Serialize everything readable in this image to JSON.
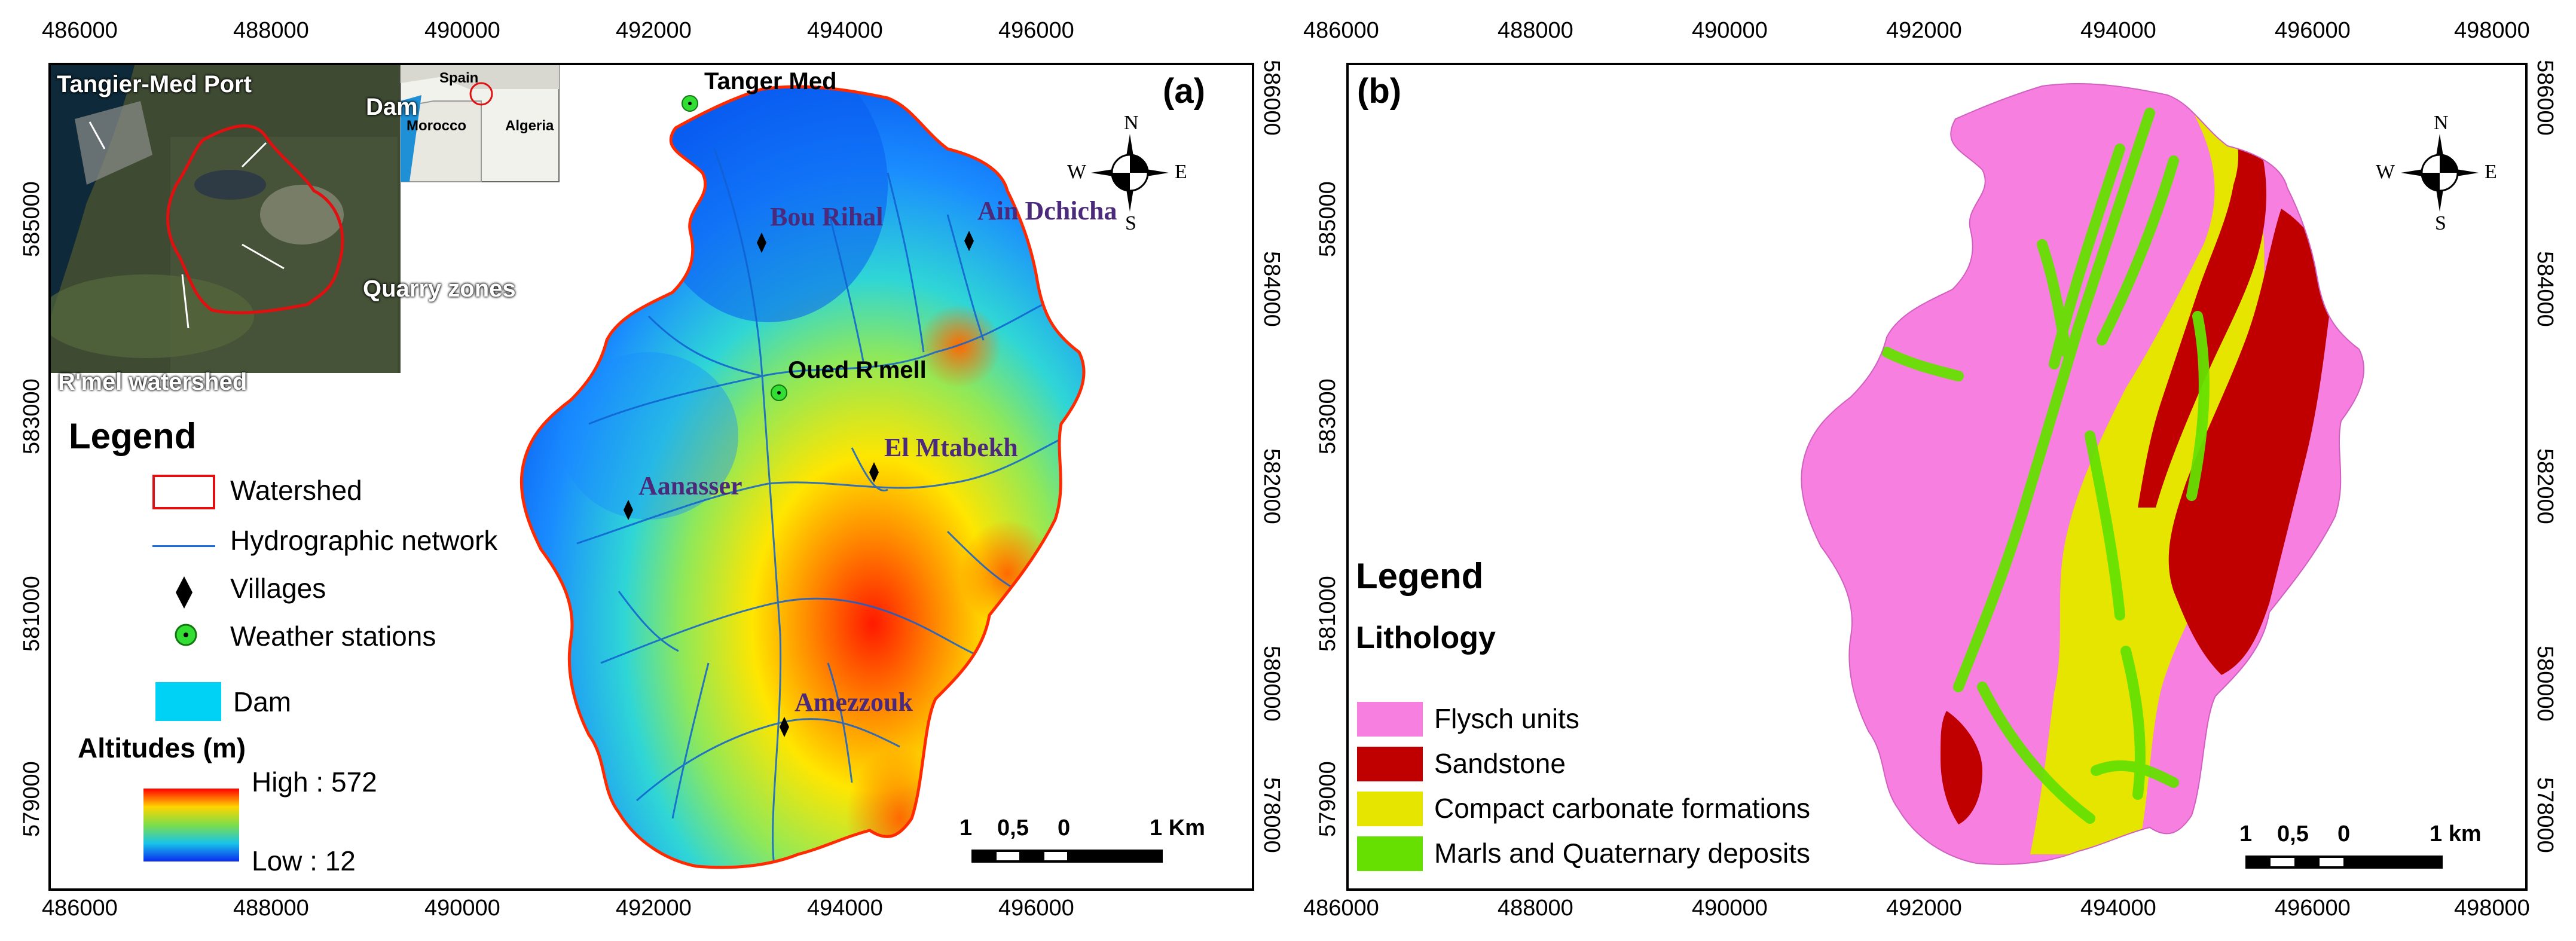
{
  "panel_a": {
    "label": "(a)",
    "top_ticks": [
      "486000",
      "488000",
      "490000",
      "492000",
      "494000",
      "496000"
    ],
    "bottom_ticks": [
      "486000",
      "488000",
      "490000",
      "492000",
      "494000",
      "496000"
    ],
    "left_ticks": [
      "585000",
      "583000",
      "581000",
      "579000"
    ],
    "right_ticks": [
      "586000",
      "584000",
      "582000",
      "580000",
      "578000"
    ],
    "villages": [
      "Bou Rihal",
      "Ain Dchicha",
      "El Mtabekh",
      "Aanasser",
      "Amezzouk"
    ],
    "stations": [
      "Tanger Med",
      "Oued R'mell"
    ],
    "inset": {
      "labels": [
        "Tangier-Med Port",
        "Dam",
        "Quarry zones",
        "R'mel watershed"
      ],
      "country_labels": [
        "Spain",
        "Morocco",
        "Algeria"
      ]
    },
    "legend": {
      "title": "Legend",
      "items": [
        "Watershed",
        "Hydrographic network",
        "Villages",
        "Weather stations",
        "Dam"
      ],
      "altitude_title": "Altitudes (m)",
      "high": "High : 572",
      "low": "Low : 12"
    },
    "scale": {
      "labels": [
        "1",
        "0,5",
        "0",
        "1 Km"
      ]
    },
    "compass": {
      "n": "N",
      "s": "S",
      "e": "E",
      "w": "W"
    }
  },
  "panel_b": {
    "label": "(b)",
    "top_ticks": [
      "486000",
      "488000",
      "490000",
      "492000",
      "494000",
      "496000",
      "498000"
    ],
    "bottom_ticks": [
      "486000",
      "488000",
      "490000",
      "492000",
      "494000",
      "496000",
      "498000"
    ],
    "left_ticks": [
      "585000",
      "583000",
      "581000",
      "579000"
    ],
    "right_ticks": [
      "586000",
      "584000",
      "582000",
      "580000",
      "578000"
    ],
    "legend": {
      "title": "Legend",
      "subtitle": "Lithology",
      "items": [
        {
          "label": "Flysch units",
          "color": "#f77fe0"
        },
        {
          "label": "Sandstone",
          "color": "#c00000"
        },
        {
          "label": "Compact carbonate formations",
          "color": "#e5e500"
        },
        {
          "label": "Marls and Quaternary deposits",
          "color": "#66e000"
        }
      ]
    },
    "scale": {
      "labels": [
        "1",
        "0,5",
        "0",
        "1 km"
      ]
    },
    "compass": {
      "n": "N",
      "s": "S",
      "e": "E",
      "w": "W"
    }
  }
}
